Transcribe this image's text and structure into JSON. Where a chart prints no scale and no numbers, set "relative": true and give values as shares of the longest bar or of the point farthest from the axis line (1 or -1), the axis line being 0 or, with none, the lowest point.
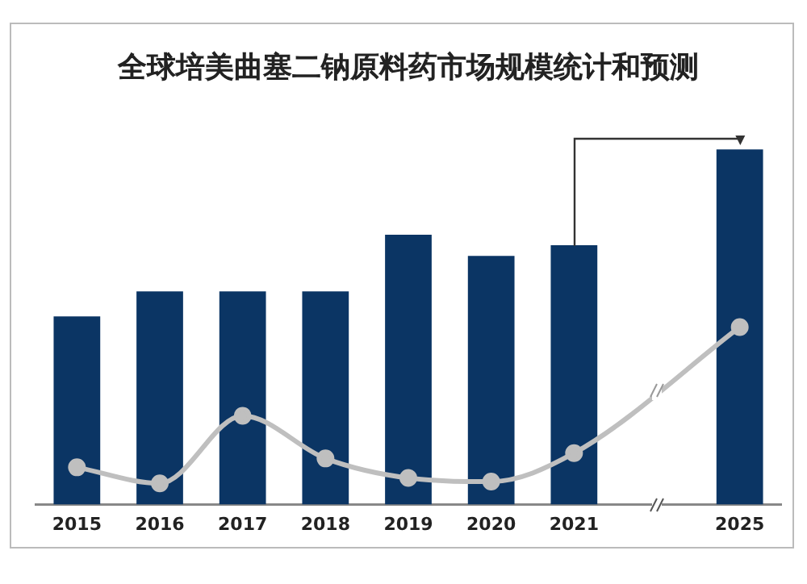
{
  "chart_data": {
    "type": "bar",
    "title": "全球培美曲塞二钠原料药市场规模统计和预测",
    "relative": true,
    "categories": [
      "2015",
      "2016",
      "2017",
      "2018",
      "2019",
      "2020",
      "2021",
      null,
      "2025"
    ],
    "series": [
      {
        "color": "#0b3564",
        "values": [
          0.53,
          0.6,
          0.6,
          0.6,
          0.76,
          0.7,
          0.73,
          null,
          1
        ]
      },
      {
        "type": "line",
        "axis": "y2",
        "color": "#bfbfbf",
        "marker": "circle",
        "line_style": "solid",
        "values": [
          0.21,
          0.12,
          0.5,
          0.26,
          0.15,
          0.13,
          0.29,
          null,
          1
        ]
      }
    ],
    "grid": false,
    "legend": false
  }
}
